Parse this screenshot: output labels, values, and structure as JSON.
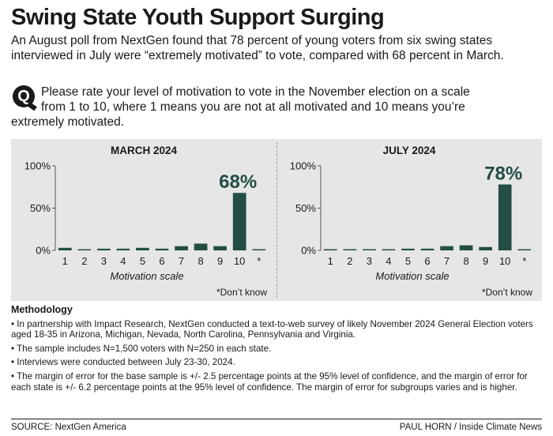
{
  "title": "Swing State Youth Support Surging",
  "subtitle": "An August poll from NextGen found that 78 percent of young voters from six swing states interviewed in July were “extremely motivated” to vote, compared with 68 percent in March.",
  "question": {
    "badge": "Q",
    "line1": "Please rate your level of motivation to vote in the November election on a scale",
    "line2": "from 1 to 10, where 1 means you are not at all motivated and 10 means you’re",
    "line3": "extremely motivated."
  },
  "colors": {
    "bar": "#234d45",
    "panel_bg": "#e6e6e6"
  },
  "chart_data": [
    {
      "type": "bar",
      "title": "MARCH 2024",
      "categories": [
        "1",
        "2",
        "3",
        "4",
        "5",
        "6",
        "7",
        "8",
        "9",
        "10",
        "*"
      ],
      "values": [
        3,
        1,
        2,
        2,
        3,
        2,
        5,
        8,
        5,
        68,
        1
      ],
      "highlight_label": "68%",
      "highlight_index": 9,
      "xlabel": "Motivation scale",
      "footnote": "*Don’t know",
      "yticks": [
        "100%",
        "50%",
        "0%"
      ],
      "ylim": [
        0,
        100
      ]
    },
    {
      "type": "bar",
      "title": "JULY 2024",
      "categories": [
        "1",
        "2",
        "3",
        "4",
        "5",
        "6",
        "7",
        "8",
        "9",
        "10",
        "*"
      ],
      "values": [
        1,
        0,
        1,
        0,
        2,
        2,
        5,
        6,
        4,
        78,
        1
      ],
      "highlight_label": "78%",
      "highlight_index": 9,
      "xlabel": "Motivation scale",
      "footnote": "*Don’t know",
      "yticks": [
        "100%",
        "50%",
        "0%"
      ],
      "ylim": [
        0,
        100
      ]
    }
  ],
  "methodology": {
    "heading": "Methodology",
    "bullets": [
      "• In partnership with Impact Research, NextGen conducted a text-to-web survey of likely November 2024 General Election voters aged 18-35 in Arizona, Michigan, Nevada, North Carolina, Pennsylvania and Virginia.",
      "• The sample includes N=1,500 voters with N=250 in each state.",
      "• Interviews were conducted between July 23-30, 2024.",
      "• The margin of error for the base sample is +/- 2.5 percentage points at the 95% level of confidence, and the margin of error for each state is +/- 6.2 percentage points at the 95% level of confidence. The margin of error for subgroups varies and is higher."
    ]
  },
  "source": "SOURCE: NextGen America",
  "credit": "PAUL HORN / Inside Climate News"
}
